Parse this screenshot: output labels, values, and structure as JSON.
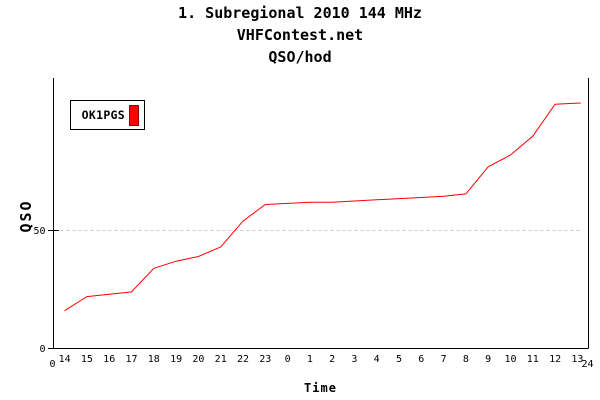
{
  "titles": {
    "line1": "1. Subregional 2010 144 MHz",
    "line2": "VHFContest.net",
    "line3": "QSO/hod"
  },
  "legend": {
    "label": "OK1PGS",
    "color": "#ff0000",
    "swatch_border": "#990000"
  },
  "axes": {
    "ylabel": "QSO",
    "xlabel": "Time",
    "y_tick_labels": [
      "0",
      "50"
    ],
    "x_start_label": "0",
    "x_end_label": "24",
    "axis_color": "#000000",
    "grid_color": "#c8c8c8"
  },
  "chart_data": {
    "type": "line",
    "title": "QSO/hod",
    "xlabel": "Time",
    "ylabel": "QSO",
    "x_range": [
      0,
      24
    ],
    "y_ticks": [
      0,
      50
    ],
    "y_gridlines_dotted": [
      50
    ],
    "ylim": [
      0,
      115
    ],
    "legend_position": "top-left",
    "grid": "single dotted horizontal line at y=50",
    "categories": [
      "14",
      "15",
      "16",
      "17",
      "18",
      "19",
      "20",
      "21",
      "22",
      "23",
      "0",
      "1",
      "2",
      "3",
      "4",
      "5",
      "6",
      "7",
      "8",
      "9",
      "10",
      "11",
      "12",
      "13"
    ],
    "series": [
      {
        "name": "OK1PGS",
        "color": "#ff0000",
        "values": [
          16,
          22,
          23,
          24,
          34,
          37,
          39,
          43,
          54,
          61,
          61.5,
          62,
          62,
          62.5,
          63,
          63.5,
          64,
          64.5,
          65.5,
          77,
          82,
          90,
          103.5,
          104
        ]
      }
    ]
  }
}
